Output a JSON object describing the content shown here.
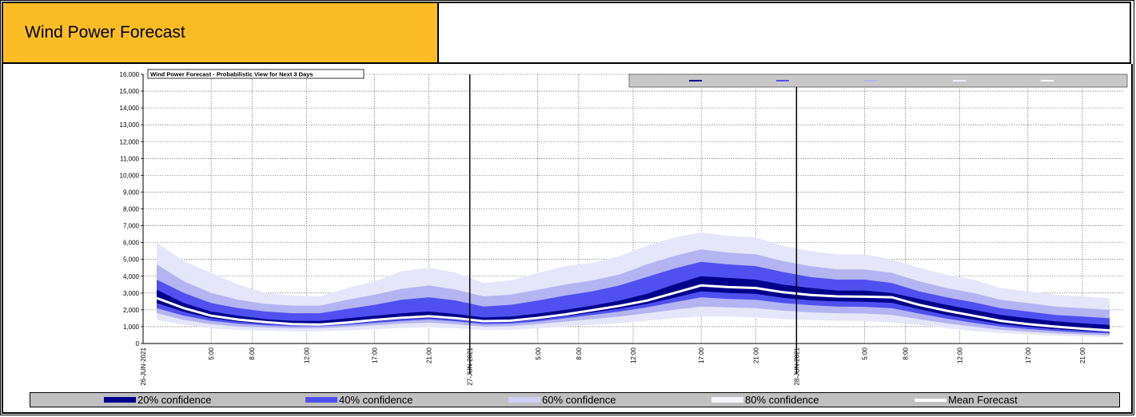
{
  "header": {
    "title": "Wind Power Forecast"
  },
  "chart_data": {
    "type": "area",
    "title": "Wind Power Forecast - Probabilistic View for Next 3 Days",
    "xlabel": "",
    "ylabel": "",
    "ylim": [
      0,
      16000
    ],
    "yticks": [
      "0",
      "1,000",
      "2,000",
      "3,000",
      "4,000",
      "5,000",
      "6,000",
      "7,000",
      "8,000",
      "9,000",
      "10,000",
      "11,000",
      "12,000",
      "13,000",
      "14,000",
      "15,000",
      "16,000"
    ],
    "xlim_hours": [
      0,
      72
    ],
    "xtick_labels": [
      "26-JUN-2021",
      "5:00",
      "8:00",
      "12:00",
      "17:00",
      "21:00",
      "27-JUN-2021",
      "5:00",
      "8:00",
      "12:00",
      "17:00",
      "21:00",
      "28-JUN-2021",
      "5:00",
      "8:00",
      "12:00",
      "17:00",
      "21:00"
    ],
    "xtick_hours": [
      0,
      5,
      8,
      12,
      17,
      21,
      24,
      29,
      32,
      36,
      41,
      45,
      48,
      53,
      56,
      60,
      65,
      69
    ],
    "day_boundaries": [
      24,
      48
    ],
    "grid": true,
    "x": [
      1,
      3,
      5,
      7,
      9,
      11,
      13,
      15,
      17,
      19,
      21,
      23,
      25,
      27,
      29,
      31,
      33,
      35,
      37,
      39,
      41,
      43,
      45,
      47,
      49,
      51,
      53,
      55,
      57,
      59,
      61,
      63,
      65,
      67,
      69,
      71
    ],
    "mean": [
      2700,
      2100,
      1650,
      1420,
      1270,
      1150,
      1130,
      1250,
      1400,
      1530,
      1620,
      1500,
      1330,
      1360,
      1520,
      1730,
      1980,
      2240,
      2550,
      3000,
      3450,
      3350,
      3300,
      3050,
      2880,
      2800,
      2780,
      2750,
      2300,
      1950,
      1650,
      1350,
      1150,
      1000,
      880,
      780
    ],
    "bands": [
      {
        "name": "80% confidence",
        "lower": [
          1400,
          1100,
          900,
          800,
          760,
          720,
          730,
          780,
          850,
          920,
          960,
          900,
          800,
          810,
          900,
          1000,
          1100,
          1200,
          1350,
          1500,
          1600,
          1600,
          1550,
          1450,
          1400,
          1350,
          1350,
          1250,
          1100,
          900,
          750,
          620,
          540,
          470,
          420,
          380
        ],
        "upper": [
          6000,
          4900,
          4200,
          3500,
          3000,
          2850,
          2800,
          3300,
          3700,
          4300,
          4500,
          4200,
          3600,
          3750,
          4200,
          4600,
          4800,
          5200,
          5800,
          6300,
          6600,
          6400,
          6300,
          5800,
          5500,
          5300,
          5300,
          5000,
          4500,
          4100,
          3800,
          3300,
          3100,
          2900,
          2800,
          2700
        ],
        "color": "#e6e6fa"
      },
      {
        "name": "60% confidence",
        "lower": [
          1800,
          1400,
          1150,
          1000,
          950,
          900,
          900,
          980,
          1080,
          1180,
          1250,
          1150,
          1000,
          1030,
          1150,
          1300,
          1450,
          1600,
          1800,
          2000,
          2200,
          2150,
          2100,
          1950,
          1850,
          1800,
          1780,
          1700,
          1450,
          1200,
          1000,
          820,
          700,
          610,
          540,
          490
        ],
        "upper": [
          4700,
          3700,
          3000,
          2600,
          2350,
          2250,
          2250,
          2600,
          2900,
          3250,
          3450,
          3200,
          2800,
          2900,
          3200,
          3500,
          3750,
          4100,
          4700,
          5200,
          5600,
          5400,
          5300,
          4900,
          4600,
          4400,
          4400,
          4200,
          3700,
          3300,
          3000,
          2600,
          2400,
          2200,
          2100,
          2000
        ],
        "color": "#b4b4f2"
      },
      {
        "name": "40% confidence",
        "lower": [
          2100,
          1650,
          1350,
          1180,
          1080,
          1020,
          1020,
          1100,
          1220,
          1340,
          1430,
          1320,
          1150,
          1180,
          1320,
          1500,
          1700,
          1900,
          2150,
          2450,
          2750,
          2650,
          2600,
          2400,
          2280,
          2200,
          2180,
          2100,
          1780,
          1480,
          1230,
          1010,
          860,
          750,
          660,
          600
        ],
        "upper": [
          3800,
          3000,
          2400,
          2100,
          1900,
          1800,
          1800,
          2050,
          2300,
          2600,
          2750,
          2550,
          2200,
          2300,
          2550,
          2850,
          3100,
          3450,
          3950,
          4450,
          4850,
          4700,
          4600,
          4250,
          3950,
          3800,
          3800,
          3600,
          3100,
          2750,
          2450,
          2100,
          1900,
          1700,
          1600,
          1500
        ],
        "color": "#5050f0"
      },
      {
        "name": "20% confidence",
        "lower": [
          2400,
          1880,
          1500,
          1300,
          1170,
          1080,
          1070,
          1180,
          1310,
          1440,
          1520,
          1410,
          1240,
          1270,
          1420,
          1620,
          1840,
          2070,
          2350,
          2720,
          3100,
          3000,
          2950,
          2720,
          2570,
          2500,
          2480,
          2420,
          2040,
          1700,
          1420,
          1160,
          990,
          860,
          760,
          690
        ],
        "upper": [
          3200,
          2400,
          1900,
          1650,
          1450,
          1350,
          1340,
          1500,
          1650,
          1800,
          1900,
          1750,
          1550,
          1600,
          1780,
          2000,
          2250,
          2550,
          2950,
          3500,
          4000,
          3900,
          3800,
          3500,
          3300,
          3150,
          3150,
          3000,
          2650,
          2300,
          2000,
          1700,
          1500,
          1320,
          1200,
          1100
        ],
        "color": "#00008b"
      }
    ],
    "legend": [
      "20% confidence",
      "40% confidence",
      "60% confidence",
      "80% confidence",
      "Mean Forecast"
    ],
    "legend_colors": [
      "#00008b",
      "#5050f0",
      "#b4b4f2",
      "#eeeeff",
      "#ffffff"
    ],
    "legend_position": "top-right"
  }
}
